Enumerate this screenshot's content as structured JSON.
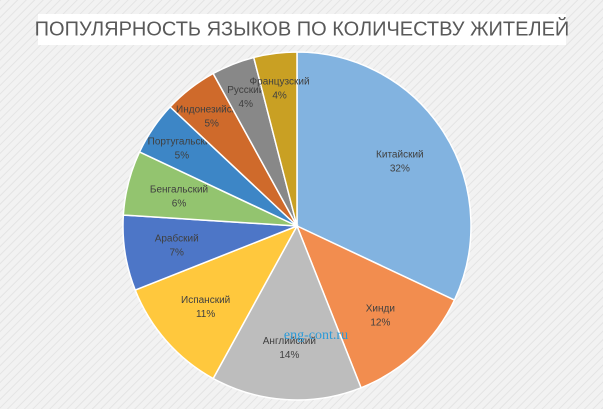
{
  "chart_data": {
    "type": "pie",
    "title": "ПОПУЛЯРНОСТЬ ЯЗЫКОВ ПО КОЛИЧЕСТВУ ЖИТЕЛЕЙ",
    "watermark": "eng-cont.ru",
    "categories": [
      "Китайский",
      "Хинди",
      "Английский",
      "Испанский",
      "Арабский",
      "Бенгальский",
      "Португальский",
      "Индонезийский",
      "Русский",
      "Французский"
    ],
    "values": [
      32,
      12,
      14,
      11,
      7,
      6,
      5,
      5,
      4,
      4
    ],
    "value_labels": [
      "32%",
      "12%",
      "14%",
      "11%",
      "7%",
      "6%",
      "5%",
      "5%",
      "4%",
      "4%"
    ],
    "colors": [
      "#82b3e0",
      "#f28d4f",
      "#bdbdbd",
      "#ffc83d",
      "#4d76c7",
      "#93c46f",
      "#3d86c6",
      "#cf6a2b",
      "#888888",
      "#c9a023"
    ]
  }
}
